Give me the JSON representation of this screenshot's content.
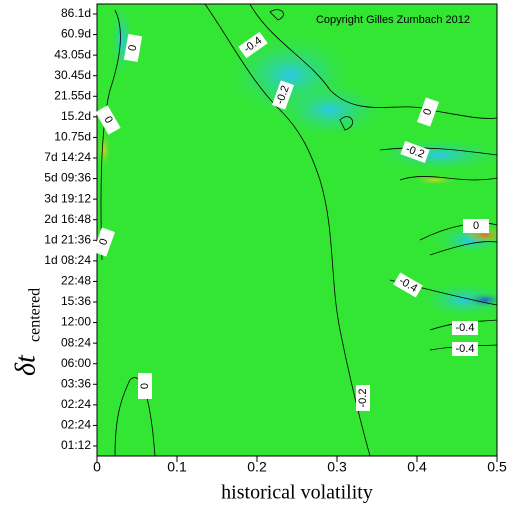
{
  "chart_data": {
    "type": "contour",
    "x_label": "historical volatility",
    "y_label": "δt",
    "y_label_sub": "centered",
    "copyright": "Copyright Gilles Zumbach 2012",
    "categories": [
      "86.1d",
      "60.9d",
      "43.05d",
      "30.45d",
      "21.55d",
      "15.2d",
      "10.75d",
      "7d 14:24",
      "5d 09:36",
      "3d 19:12",
      "2d 16:48",
      "1d 21:36",
      "1d 08:24",
      "22:48",
      "15:36",
      "12:00",
      "08:24",
      "06:00",
      "03:36",
      "02:24",
      "02:24",
      "01:12"
    ],
    "xlim": [
      0,
      0.5
    ],
    "xticks": [
      0,
      0.1,
      0.2,
      0.3,
      0.4,
      0.5
    ],
    "contour_labels": [
      -0.4,
      -0.2,
      0,
      0,
      -0.2,
      0,
      -0.4,
      -0.4,
      -0.4,
      -0.2,
      0,
      0,
      0
    ],
    "background_color": "#33e633"
  }
}
